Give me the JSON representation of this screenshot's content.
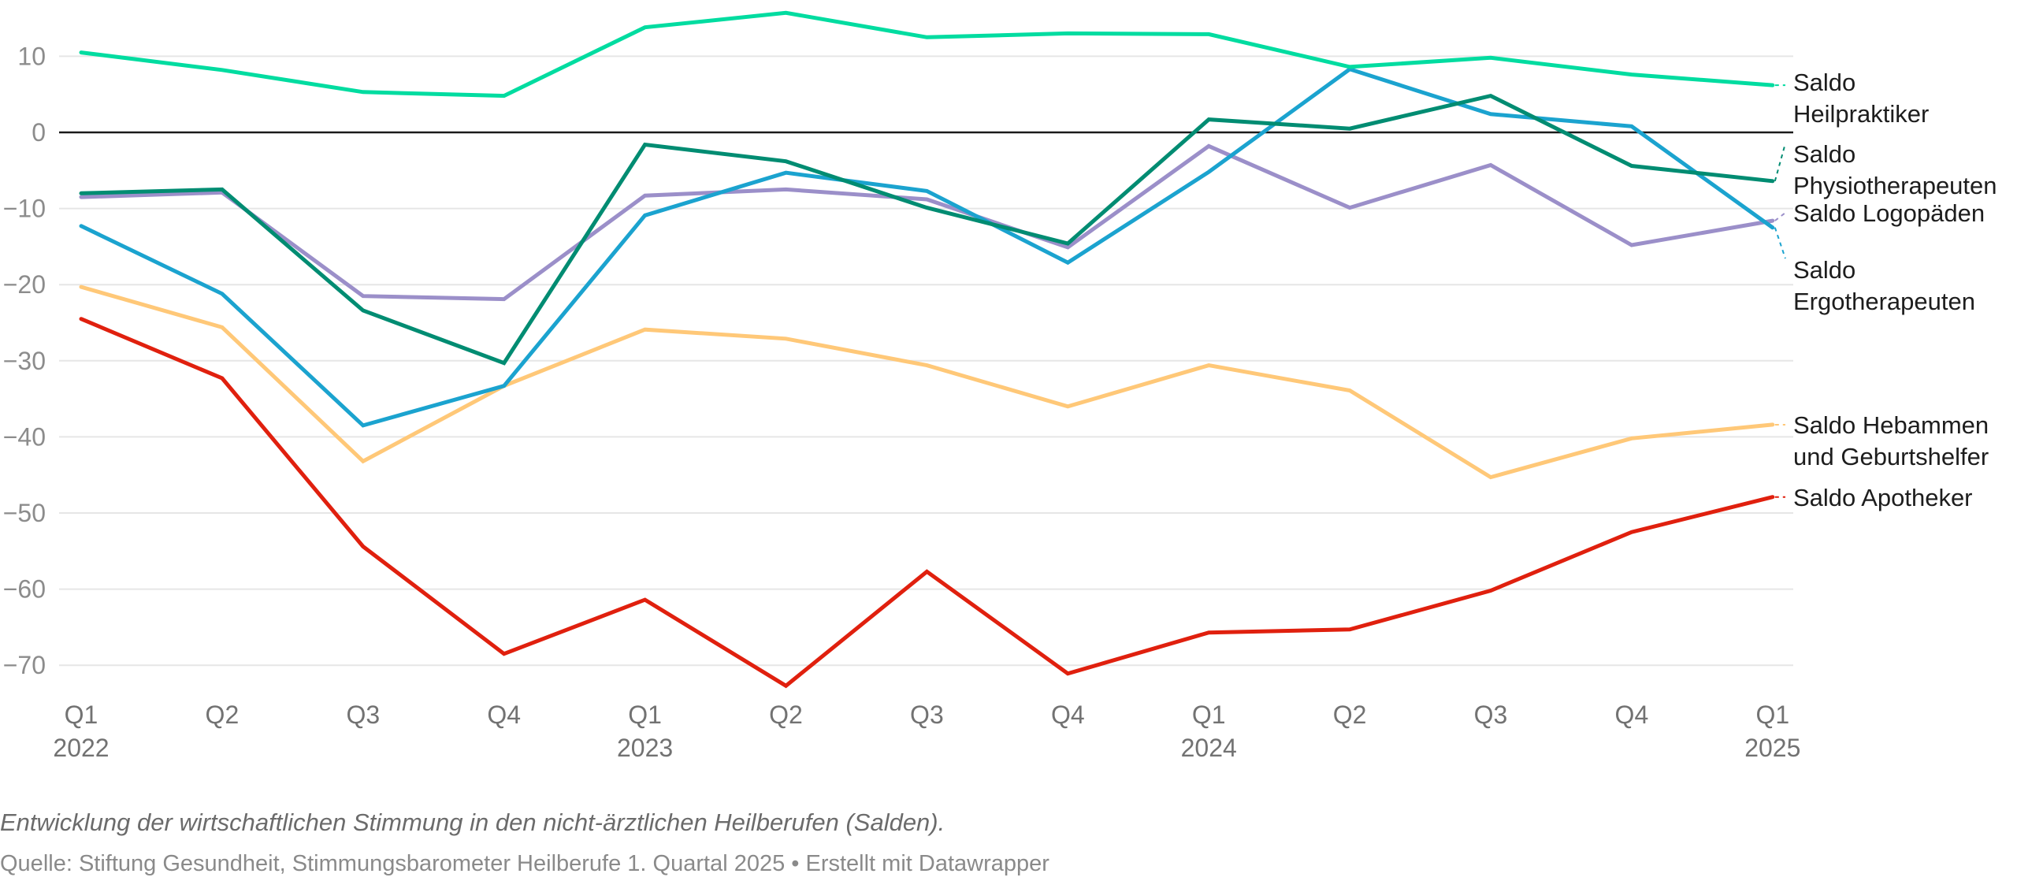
{
  "chart_data": {
    "type": "line",
    "title": "",
    "caption": "Entwicklung der wirtschaftlichen Stimmung in den nicht-ärztlichen Heilberufen (Salden).",
    "source": "Quelle: Stiftung Gesundheit, Stimmungsbarometer Heilberufe 1. Quartal 2025 • Erstellt mit Datawrapper",
    "xlabel": "",
    "ylabel": "",
    "ylim": [
      -75,
      15
    ],
    "yticks": [
      10,
      0,
      -10,
      -20,
      -30,
      -40,
      -50,
      -60,
      -70
    ],
    "ytick_labels": [
      "10",
      "0",
      "−10",
      "−20",
      "−30",
      "−40",
      "−50",
      "−60",
      "−70"
    ],
    "grid": true,
    "legend": "direct labels right",
    "x": [
      "Q1 2022",
      "Q2 2022",
      "Q3 2022",
      "Q4 2022",
      "Q1 2023",
      "Q2 2023",
      "Q3 2023",
      "Q4 2023",
      "Q1 2024",
      "Q2 2024",
      "Q3 2024",
      "Q4 2024",
      "Q1 2025"
    ],
    "xtick_quarters": [
      "Q1",
      "Q2",
      "Q3",
      "Q4",
      "Q1",
      "Q2",
      "Q3",
      "Q4",
      "Q1",
      "Q2",
      "Q3",
      "Q4",
      "Q1"
    ],
    "xtick_years": [
      "2022",
      "",
      "",
      "",
      "2023",
      "",
      "",
      "",
      "2024",
      "",
      "",
      "",
      "2025"
    ],
    "series": [
      {
        "name": "Saldo Heilpraktiker",
        "label_lines": [
          "Saldo",
          "Heilpraktiker"
        ],
        "color": "#00dca0",
        "values": [
          10.5,
          8.2,
          5.3,
          4.8,
          13.8,
          15.7,
          12.5,
          13.0,
          12.9,
          8.6,
          9.8,
          7.6,
          6.2
        ]
      },
      {
        "name": "Saldo Physiotherapeuten",
        "label_lines": [
          "Saldo",
          "Physiotherapeuten"
        ],
        "color": "#008c72",
        "values": [
          -8.0,
          -7.5,
          -23.4,
          -30.3,
          -1.6,
          -3.8,
          -9.9,
          -14.6,
          1.7,
          0.5,
          4.8,
          -4.4,
          -6.4
        ]
      },
      {
        "name": "Saldo Logopäden",
        "label_lines": [
          "Saldo Logopäden"
        ],
        "color": "#9b8fc9",
        "values": [
          -8.5,
          -7.9,
          -21.5,
          -21.9,
          -8.3,
          -7.5,
          -8.8,
          -15.1,
          -1.8,
          -9.9,
          -4.3,
          -14.8,
          -11.6
        ]
      },
      {
        "name": "Saldo Ergotherapeuten",
        "label_lines": [
          "Saldo",
          "Ergotherapeuten"
        ],
        "color": "#1ba3cf",
        "values": [
          -12.3,
          -21.2,
          -38.5,
          -33.3,
          -10.9,
          -5.3,
          -7.7,
          -17.1,
          -5.2,
          8.3,
          2.4,
          0.8,
          -12.5
        ]
      },
      {
        "name": "Saldo Hebammen und Geburtshelfer",
        "label_lines": [
          "Saldo Hebammen",
          "und Geburtshelfer"
        ],
        "color": "#ffc878",
        "values": [
          -20.3,
          -25.6,
          -43.2,
          -33.3,
          -25.9,
          -27.1,
          -30.6,
          -36.0,
          -30.6,
          -33.9,
          -45.3,
          -40.2,
          -38.4
        ]
      },
      {
        "name": "Saldo Apotheker",
        "label_lines": [
          "Saldo Apotheker"
        ],
        "color": "#e0200e",
        "values": [
          -24.5,
          -32.3,
          -54.4,
          -68.5,
          -61.4,
          -72.7,
          -57.7,
          -71.1,
          -65.7,
          -65.3,
          -60.2,
          -52.5,
          -47.9
        ]
      }
    ]
  }
}
